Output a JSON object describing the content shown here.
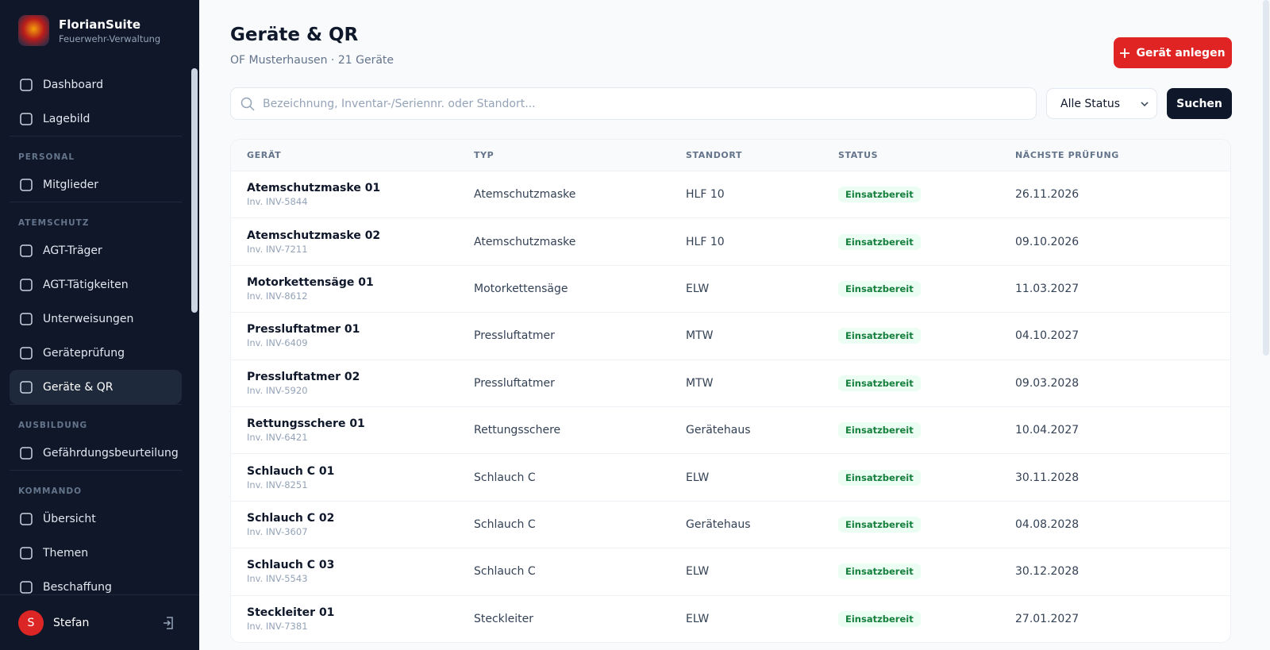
{
  "app": {
    "name": "FlorianSuite",
    "subtitle": "Feuerwehr-Verwaltung"
  },
  "nav": [
    {
      "items": [
        {
          "label": "Dashboard"
        },
        {
          "label": "Lagebild"
        }
      ]
    },
    {
      "heading": "PERSONAL",
      "items": [
        {
          "label": "Mitglieder"
        }
      ]
    },
    {
      "heading": "ATEMSCHUTZ",
      "items": [
        {
          "label": "AGT-Träger"
        },
        {
          "label": "AGT-Tätigkeiten"
        },
        {
          "label": "Unterweisungen"
        },
        {
          "label": "Geräteprüfung"
        },
        {
          "label": "Geräte & QR",
          "active": true
        }
      ]
    },
    {
      "heading": "AUSBILDUNG",
      "items": [
        {
          "label": "Gefährdungsbeurteilung"
        }
      ]
    },
    {
      "heading": "KOMMANDO",
      "items": [
        {
          "label": "Übersicht"
        },
        {
          "label": "Themen"
        },
        {
          "label": "Beschaffung"
        }
      ]
    }
  ],
  "user": {
    "initial": "S",
    "name": "Stefan"
  },
  "header": {
    "title": "Geräte & QR",
    "subtitle": "OF Musterhausen · 21 Geräte",
    "button": "Gerät anlegen"
  },
  "filters": {
    "search_placeholder": "Bezeichnung, Inventar-/Seriennr. oder Standort...",
    "status": "Alle Status",
    "button": "Suchen"
  },
  "table": {
    "columns": [
      "GERÄT",
      "TYP",
      "STANDORT",
      "STATUS",
      "NÄCHSTE PRÜFUNG"
    ],
    "rows": [
      [
        "Atemschutzmaske 01",
        "Inv. INV-5844",
        "Atemschutzmaske",
        "HLF 10",
        "Einsatzbereit",
        "26.11.2026"
      ],
      [
        "Atemschutzmaske 02",
        "Inv. INV-7211",
        "Atemschutzmaske",
        "HLF 10",
        "Einsatzbereit",
        "09.10.2026"
      ],
      [
        "Motorkettensäge 01",
        "Inv. INV-8612",
        "Motorkettensäge",
        "ELW",
        "Einsatzbereit",
        "11.03.2027"
      ],
      [
        "Pressluftatmer 01",
        "Inv. INV-6409",
        "Pressluftatmer",
        "MTW",
        "Einsatzbereit",
        "04.10.2027"
      ],
      [
        "Pressluftatmer 02",
        "Inv. INV-5920",
        "Pressluftatmer",
        "MTW",
        "Einsatzbereit",
        "09.03.2028"
      ],
      [
        "Rettungsschere 01",
        "Inv. INV-6421",
        "Rettungsschere",
        "Gerätehaus",
        "Einsatzbereit",
        "10.04.2027"
      ],
      [
        "Schlauch C 01",
        "Inv. INV-8251",
        "Schlauch C",
        "ELW",
        "Einsatzbereit",
        "30.11.2028"
      ],
      [
        "Schlauch C 02",
        "Inv. INV-3607",
        "Schlauch C",
        "Gerätehaus",
        "Einsatzbereit",
        "04.08.2028"
      ],
      [
        "Schlauch C 03",
        "Inv. INV-5543",
        "Schlauch C",
        "ELW",
        "Einsatzbereit",
        "30.12.2028"
      ],
      [
        "Steckleiter 01",
        "Inv. INV-7381",
        "Steckleiter",
        "ELW",
        "Einsatzbereit",
        "27.01.2027"
      ]
    ]
  }
}
